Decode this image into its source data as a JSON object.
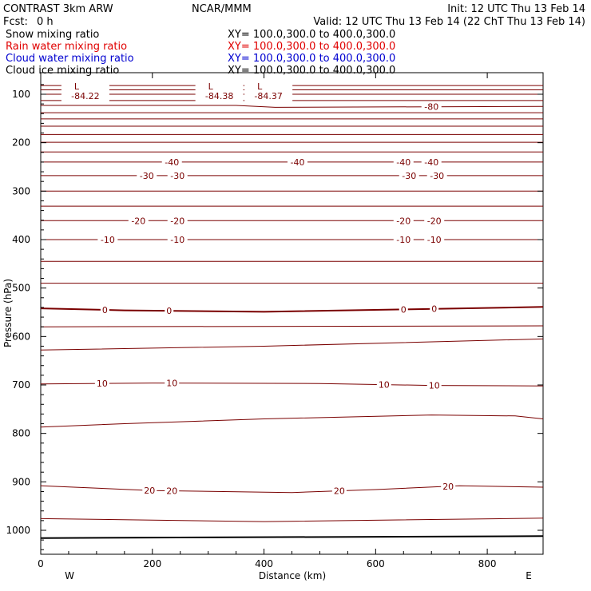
{
  "header": {
    "model": "CONTRAST  3km ARW",
    "center": "NCAR/MMM",
    "init": "Init: 12 UTC Thu 13 Feb 14",
    "fcst_label": "Fcst:",
    "fcst_value": "0 h",
    "valid": "Valid: 12 UTC Thu 13 Feb 14 (22 ChT Thu 13 Feb 14)"
  },
  "fields": [
    {
      "name": "Snow mixing ratio",
      "xy": "XY= 100.0,300.0 to 400.0,300.0",
      "color": "#000000"
    },
    {
      "name": "Rain water mixing ratio",
      "xy": "XY= 100.0,300.0 to 400.0,300.0",
      "color": "#e00000"
    },
    {
      "name": "Cloud water mixing ratio",
      "xy": "XY= 100.0,300.0 to 400.0,300.0",
      "color": "#0000d0"
    },
    {
      "name": "Cloud ice mixing ratio",
      "xy": "XY= 100.0,300.0 to 400.0,300.0",
      "color": "#000000"
    }
  ],
  "colors": {
    "contour": "#7a0000",
    "axis": "#000000"
  },
  "chart_data": {
    "type": "contour",
    "xlabel": "Distance (km)",
    "ylabel": "Pressure (hPa)",
    "xlim": [
      0,
      900
    ],
    "ylim": [
      1050,
      65
    ],
    "x_ticks": [
      "0",
      "200",
      "400",
      "600",
      "800"
    ],
    "y_ticks": [
      "100",
      "200",
      "300",
      "400",
      "500",
      "600",
      "700",
      "800",
      "900",
      "1000"
    ],
    "x_end_labels": {
      "left": "W",
      "right": "E"
    },
    "minima": [
      {
        "mark": "L",
        "value": "-84.22",
        "x": 80
      },
      {
        "mark": "L",
        "value": "-84.38",
        "x": 320
      },
      {
        "mark": "L",
        "value": "-84.37",
        "x": 408
      }
    ],
    "isotherms": [
      {
        "points": [
          [
            0,
            82
          ],
          [
            900,
            82
          ]
        ]
      },
      {
        "points": [
          [
            0,
            91
          ],
          [
            900,
            91
          ]
        ]
      },
      {
        "points": [
          [
            0,
            100
          ],
          [
            900,
            100
          ]
        ]
      },
      {
        "points": [
          [
            0,
            113
          ],
          [
            900,
            113
          ]
        ]
      },
      {
        "points": [
          [
            0,
            123
          ],
          [
            350,
            123
          ],
          [
            420,
            127
          ],
          [
            900,
            125
          ]
        ],
        "label": "-80",
        "label_x": [
          700
        ]
      },
      {
        "points": [
          [
            0,
            138
          ],
          [
            900,
            138
          ]
        ]
      },
      {
        "points": [
          [
            0,
            151
          ],
          [
            900,
            151
          ]
        ]
      },
      {
        "points": [
          [
            0,
            166
          ],
          [
            900,
            166
          ]
        ]
      },
      {
        "points": [
          [
            0,
            183
          ],
          [
            900,
            183
          ]
        ]
      },
      {
        "points": [
          [
            0,
            199
          ],
          [
            900,
            199
          ]
        ]
      },
      {
        "points": [
          [
            0,
            219
          ],
          [
            900,
            219
          ]
        ]
      },
      {
        "points": [
          [
            0,
            240
          ],
          [
            900,
            240
          ]
        ],
        "label": "-40",
        "label_x": [
          235,
          460,
          650,
          700
        ]
      },
      {
        "points": [
          [
            0,
            268
          ],
          [
            900,
            268
          ]
        ],
        "label": "-30",
        "label_x": [
          190,
          245,
          660,
          710
        ]
      },
      {
        "points": [
          [
            0,
            300
          ],
          [
            900,
            300
          ]
        ]
      },
      {
        "points": [
          [
            0,
            331
          ],
          [
            900,
            331
          ]
        ]
      },
      {
        "points": [
          [
            0,
            361
          ],
          [
            900,
            361
          ]
        ],
        "label": "-20",
        "label_x": [
          175,
          245,
          650,
          705
        ]
      },
      {
        "points": [
          [
            0,
            400
          ],
          [
            900,
            400
          ]
        ],
        "label": "-10",
        "label_x": [
          120,
          245,
          650,
          705
        ]
      },
      {
        "points": [
          [
            0,
            445
          ],
          [
            900,
            445
          ]
        ]
      },
      {
        "points": [
          [
            0,
            490
          ],
          [
            900,
            490
          ]
        ]
      },
      {
        "points": [
          [
            0,
            542
          ],
          [
            150,
            546
          ],
          [
            400,
            549
          ],
          [
            650,
            544
          ],
          [
            900,
            539
          ]
        ],
        "label": "0",
        "label_x": [
          115,
          230,
          650,
          705
        ]
      },
      {
        "points": [
          [
            0,
            580
          ],
          [
            900,
            578
          ]
        ]
      },
      {
        "points": [
          [
            0,
            628
          ],
          [
            400,
            620
          ],
          [
            900,
            605
          ]
        ]
      },
      {
        "points": [
          [
            0,
            698
          ],
          [
            200,
            696
          ],
          [
            500,
            697
          ],
          [
            700,
            701
          ],
          [
            900,
            702
          ]
        ],
        "label": "10",
        "label_x": [
          110,
          235,
          615,
          705
        ]
      },
      {
        "points": [
          [
            0,
            787
          ],
          [
            150,
            780
          ],
          [
            400,
            770
          ],
          [
            700,
            762
          ],
          [
            850,
            764
          ],
          [
            900,
            770
          ]
        ]
      },
      {
        "points": [
          [
            0,
            908
          ],
          [
            200,
            918
          ],
          [
            450,
            922
          ],
          [
            600,
            916
          ],
          [
            750,
            908
          ],
          [
            900,
            911
          ]
        ],
        "label": "20",
        "label_x": [
          195,
          235,
          535,
          730
        ]
      },
      {
        "points": [
          [
            0,
            976
          ],
          [
            400,
            982
          ],
          [
            900,
            975
          ]
        ]
      },
      {
        "points": [
          [
            0,
            1016
          ],
          [
            900,
            1012
          ]
        ],
        "bold": true
      }
    ]
  }
}
